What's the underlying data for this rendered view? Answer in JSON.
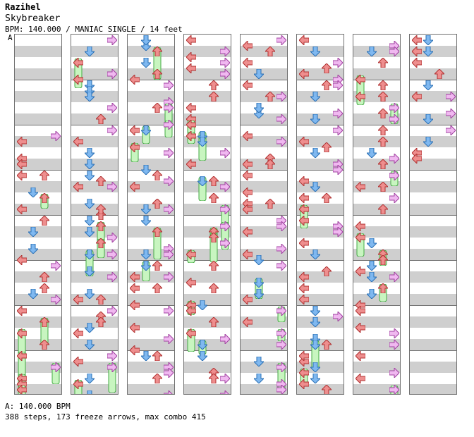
{
  "header": {
    "artist": "Razihel",
    "song_title": "Skybreaker",
    "meta_line": "BPM: 140.000 / MANIAC SINGLE / 14 feet",
    "bpm_marker": "A"
  },
  "footer": {
    "bpm_line": "A: 140.000 BPM",
    "summary": "388 steps, 173 freeze arrows, max combo 415"
  },
  "colors": {
    "left": "#ee8e8e",
    "down": "#7fb8f0",
    "up": "#ee8e8e",
    "right": "#f0b8f0",
    "freeze_fill": "#c8f5c0",
    "freeze_stroke": "#44aa44",
    "stripe": "#cfcfcf",
    "border": "#707070"
  }
}
